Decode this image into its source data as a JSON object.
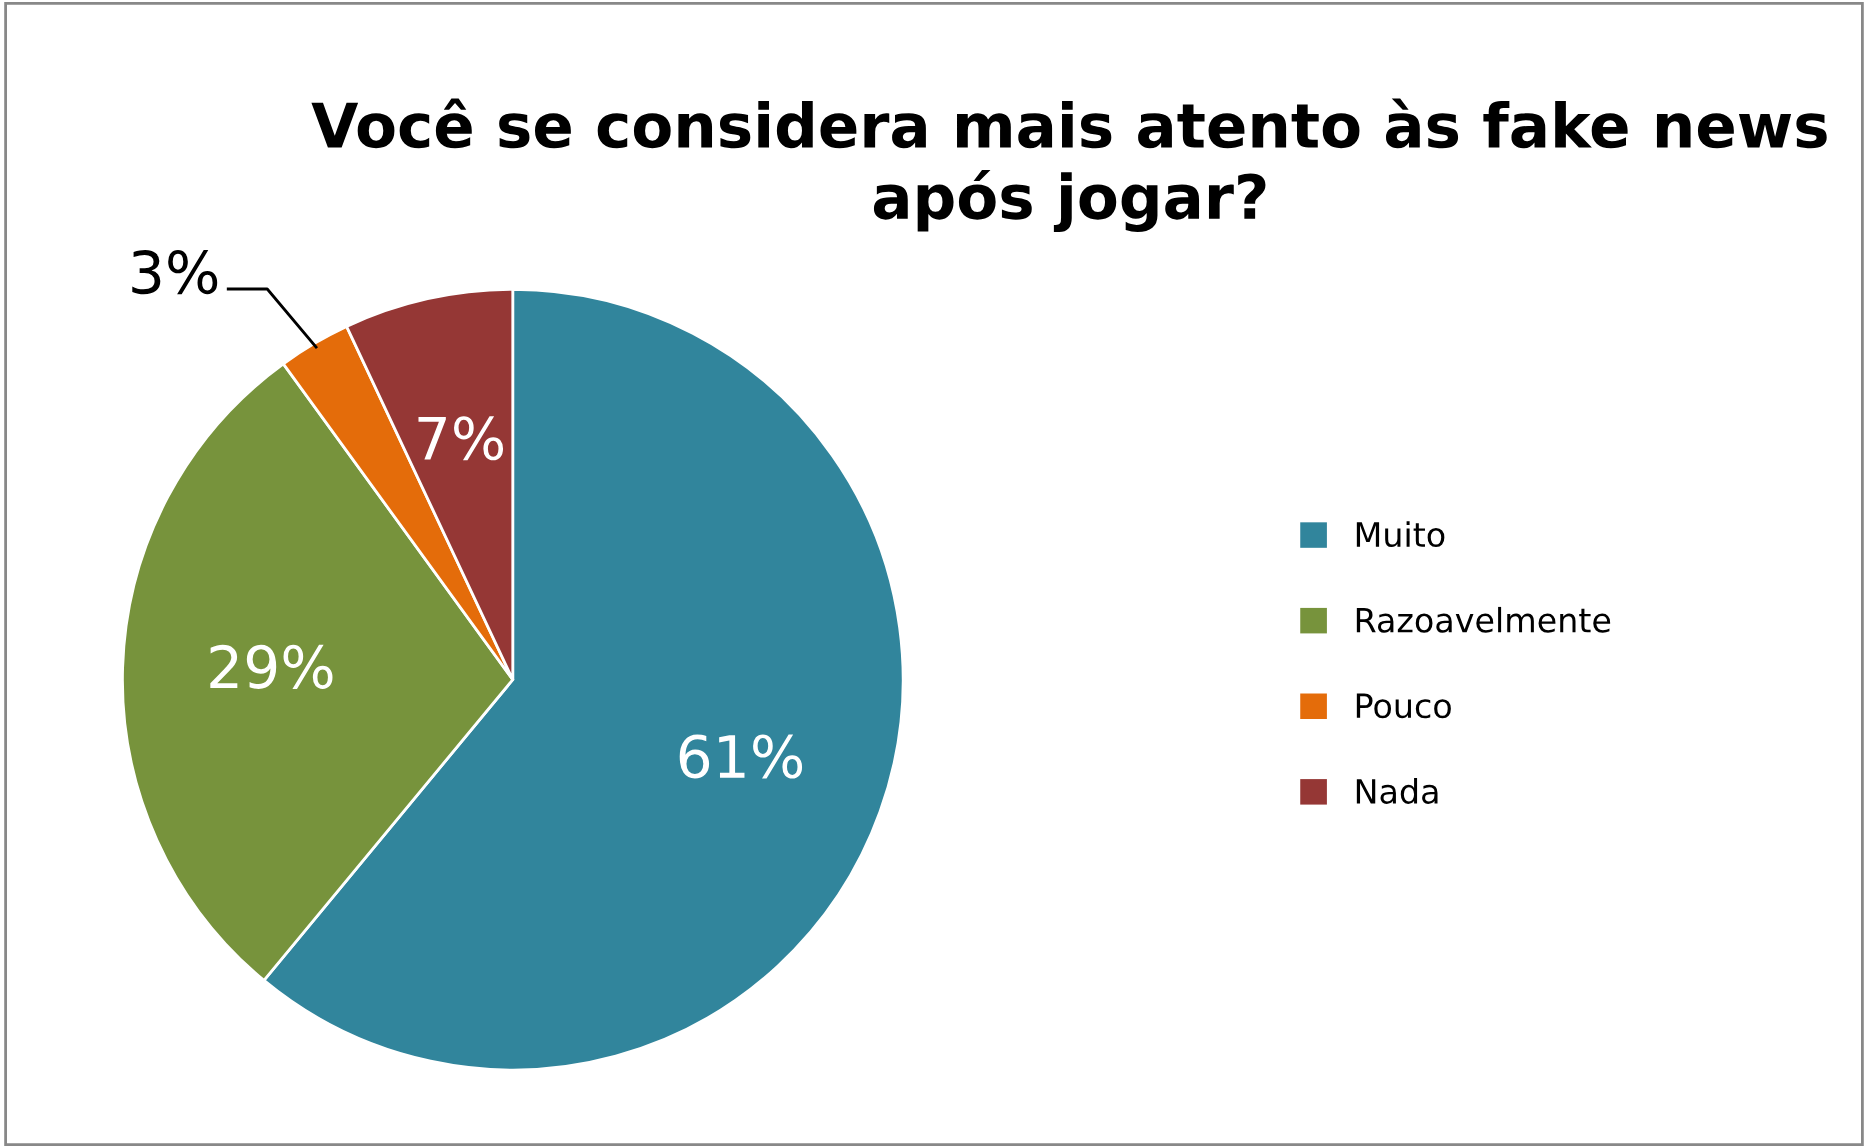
{
  "chart_data": {
    "type": "pie",
    "title": "Você se considera mais atento às fake news após jogar?",
    "categories": [
      "Muito",
      "Razoavelmente",
      "Pouco",
      "Nada"
    ],
    "values": [
      61,
      29,
      3,
      7
    ],
    "colors": [
      "#31859c",
      "#77933c",
      "#e46c0a",
      "#953735"
    ],
    "value_labels": [
      "61%",
      "29%",
      "3%",
      "7%"
    ],
    "legend": "right"
  }
}
